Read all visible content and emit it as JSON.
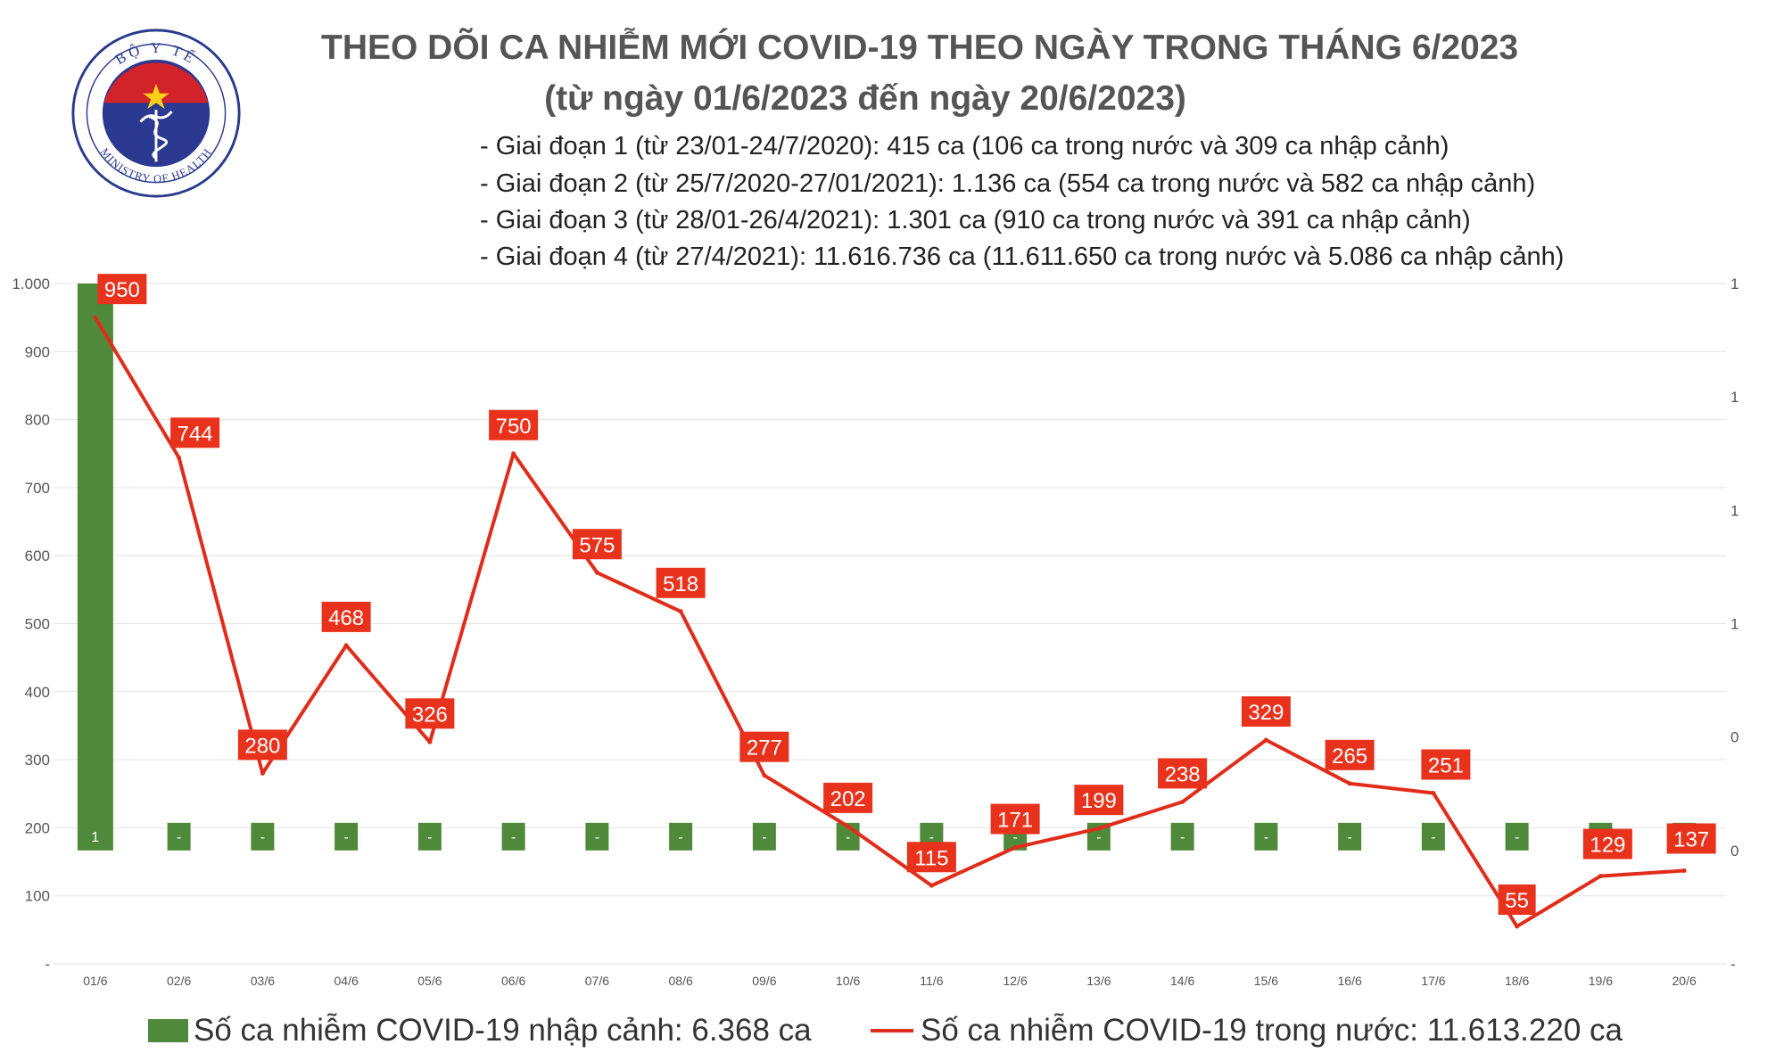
{
  "logo": {
    "top_text": "BỘ Y TẾ",
    "bottom_text": "MINISTRY OF HEALTH",
    "icon": "caduceus-icon"
  },
  "title": {
    "line1": "THEO DÕI CA NHIỄM MỚI COVID-19 THEO NGÀY TRONG THÁNG 6/2023",
    "line2": "(từ ngày 01/6/2023 đến ngày 20/6/2023)"
  },
  "stages": [
    "- Giai đoạn 1 (từ 23/01-24/7/2020): 415 ca (106 ca trong nước và 309 ca nhập cảnh)",
    "- Giai đoạn 2 (từ 25/7/2020-27/01/2021): 1.136 ca (554 ca trong nước và 582 ca nhập cảnh)",
    "- Giai đoạn 3 (từ 28/01-26/4/2021): 1.301 ca (910 ca trong nước và 391 ca nhập cảnh)",
    "- Giai đoạn 4 (từ 27/4/2021): 11.616.736 ca (11.611.650 ca trong nước và 5.086 ca nhập cảnh)"
  ],
  "legend": {
    "bar_label": "Số ca nhiễm COVID-19 nhập cảnh: 6.368 ca",
    "line_label": "Số ca nhiễm COVID-19 trong nước: 11.613.220 ca"
  },
  "colors": {
    "bar": "#4f8a3a",
    "line": "#e02d1b",
    "label_bg": "#e8321c",
    "axis_text": "#555555",
    "grid": "#e3e3e3"
  },
  "chart_data": {
    "type": "bar+line",
    "categories": [
      "01/6",
      "02/6",
      "03/6",
      "04/6",
      "05/6",
      "06/6",
      "07/6",
      "08/6",
      "09/6",
      "10/6",
      "11/6",
      "12/6",
      "13/6",
      "14/6",
      "15/6",
      "16/6",
      "17/6",
      "18/6",
      "19/6",
      "20/6"
    ],
    "series": [
      {
        "name": "Số ca nhiễm COVID-19 nhập cảnh: 6.368 ca",
        "type": "bar",
        "axis": "right",
        "values": [
          1,
          0,
          0,
          0,
          0,
          0,
          0,
          0,
          0,
          0,
          0,
          0,
          0,
          0,
          0,
          0,
          0,
          0,
          0,
          0
        ],
        "data_labels": [
          "1",
          "-",
          "-",
          "-",
          "-",
          "-",
          "-",
          "-",
          "-",
          "-",
          "-",
          "-",
          "-",
          "-",
          "-",
          "-",
          "-",
          "-",
          "-",
          "-"
        ]
      },
      {
        "name": "Số ca nhiễm COVID-19 trong nước: 11.613.220 ca",
        "type": "line",
        "axis": "left",
        "values": [
          950,
          744,
          280,
          468,
          326,
          750,
          575,
          518,
          277,
          202,
          115,
          171,
          199,
          238,
          329,
          265,
          251,
          55,
          129,
          137
        ],
        "data_labels": [
          "950",
          "744",
          "280",
          "468",
          "326",
          "750",
          "575",
          "518",
          "277",
          "202",
          "115",
          "171",
          "199",
          "238",
          "329",
          "265",
          "251",
          "55",
          "129",
          "137"
        ]
      }
    ],
    "left_axis": {
      "ylim": [
        0,
        1000
      ],
      "ticks": [
        "-",
        "100",
        "200",
        "300",
        "400",
        "500",
        "600",
        "700",
        "800",
        "900",
        "1.000"
      ]
    },
    "right_axis": {
      "ylim": [
        -0.2,
        1.0
      ],
      "ticks": [
        "-",
        "0",
        "0",
        "1",
        "1",
        "1",
        "1"
      ]
    },
    "legend_position": "bottom",
    "grid": true
  }
}
